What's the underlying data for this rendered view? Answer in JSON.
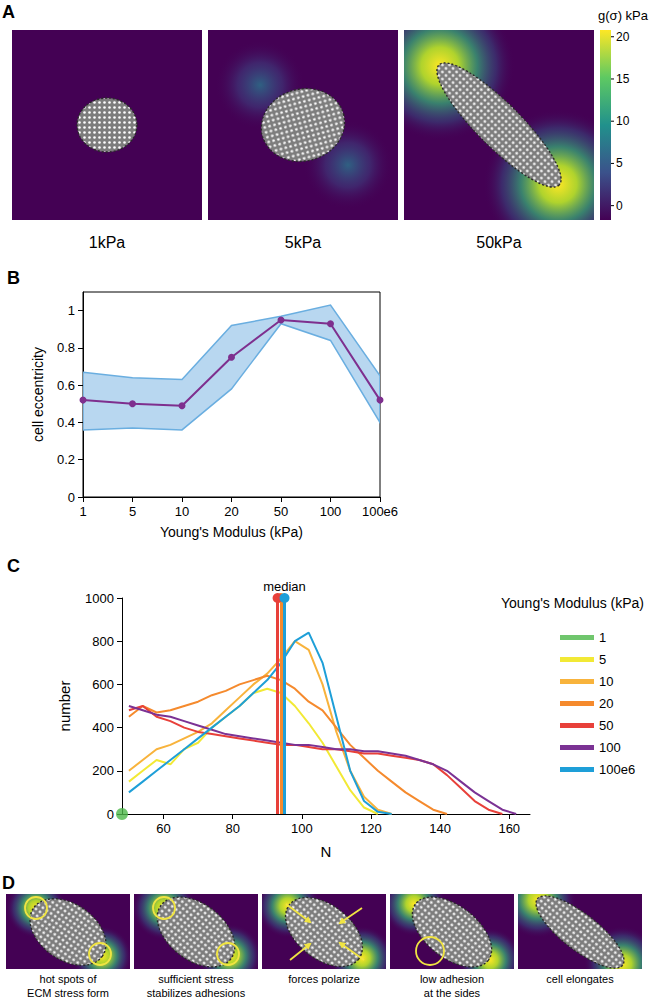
{
  "panel_A": {
    "panel": "A",
    "images": [
      {
        "caption": "1kPa"
      },
      {
        "caption": "5kPa"
      },
      {
        "caption": "50kPa"
      }
    ],
    "colorbar": {
      "title": "g(σ) kPa",
      "range": [
        -1.7,
        20.8
      ],
      "ticks": [
        0,
        5,
        10,
        15,
        20
      ]
    }
  },
  "chart_data": [
    {
      "panel": "B",
      "type": "line",
      "categories": [
        "1",
        "5",
        "10",
        "20",
        "50",
        "100",
        "100e6"
      ],
      "values": [
        0.52,
        0.5,
        0.49,
        0.75,
        0.95,
        0.93,
        0.52
      ],
      "lower": [
        0.36,
        0.37,
        0.36,
        0.58,
        0.93,
        0.84,
        0.4
      ],
      "upper": [
        0.67,
        0.64,
        0.63,
        0.92,
        0.97,
        1.03,
        0.65
      ],
      "color": "#7e2f8e",
      "marker": "circle",
      "x_label": "Young's Modulus (kPa)",
      "y_label": "cell eccentricity",
      "ylim": [
        0,
        1.1
      ],
      "yticks": [
        0,
        0.2,
        0.4,
        0.6,
        0.8,
        1
      ],
      "grid": false
    },
    {
      "panel": "C",
      "type": "line",
      "x_label": "N",
      "y_label": "number",
      "xlim": [
        48,
        166
      ],
      "xticks": [
        60,
        80,
        100,
        120,
        140,
        160
      ],
      "ylim": [
        0,
        1000
      ],
      "yticks": [
        0,
        200,
        400,
        600,
        800,
        1000
      ],
      "grid": false,
      "legend": "right",
      "legend_title": "Young's Modulus (kPa)",
      "annotation": "median",
      "x": [
        50,
        54,
        58,
        62,
        66,
        70,
        74,
        78,
        82,
        86,
        90,
        94,
        98,
        102,
        106,
        110,
        114,
        118,
        122,
        126,
        130,
        134,
        138,
        142,
        146,
        150,
        154,
        158,
        162
      ],
      "series": [
        {
          "name": "1",
          "color": "#4cb848",
          "type": "scatter",
          "marker": "circle",
          "x": [
            48
          ],
          "values": [
            0
          ]
        },
        {
          "name": "5",
          "color": "#f2e935",
          "values": [
            150,
            200,
            250,
            230,
            300,
            330,
            400,
            450,
            500,
            560,
            580,
            560,
            500,
            420,
            330,
            220,
            110,
            30,
            0,
            null,
            null,
            null,
            null,
            null,
            null,
            null,
            null,
            null,
            null
          ]
        },
        {
          "name": "10",
          "color": "#f8b33c",
          "values": [
            200,
            250,
            300,
            320,
            350,
            380,
            420,
            480,
            540,
            600,
            650,
            720,
            800,
            760,
            600,
            380,
            200,
            80,
            20,
            0,
            null,
            null,
            null,
            null,
            null,
            null,
            null,
            null,
            null
          ]
        },
        {
          "name": "20",
          "color": "#f58a2d",
          "median": 94,
          "values": [
            450,
            500,
            470,
            480,
            500,
            520,
            550,
            570,
            600,
            620,
            640,
            620,
            580,
            520,
            480,
            400,
            320,
            260,
            200,
            150,
            100,
            60,
            20,
            0,
            null,
            null,
            null,
            null,
            null
          ]
        },
        {
          "name": "50",
          "color": "#e8403a",
          "median": 93,
          "values": [
            480,
            500,
            450,
            430,
            400,
            380,
            370,
            360,
            350,
            340,
            330,
            320,
            320,
            310,
            300,
            300,
            290,
            280,
            280,
            270,
            260,
            250,
            230,
            180,
            120,
            60,
            20,
            0,
            null
          ]
        },
        {
          "name": "100",
          "color": "#7b3294",
          "values": [
            500,
            480,
            460,
            450,
            430,
            410,
            390,
            370,
            360,
            350,
            340,
            330,
            320,
            320,
            310,
            300,
            300,
            290,
            290,
            280,
            270,
            250,
            230,
            200,
            150,
            100,
            60,
            20,
            0
          ]
        },
        {
          "name": "100e6",
          "color": "#1e9fd8",
          "median": 95,
          "values": [
            100,
            150,
            200,
            250,
            300,
            350,
            400,
            450,
            500,
            560,
            620,
            700,
            800,
            840,
            700,
            450,
            200,
            60,
            10,
            0,
            null,
            null,
            null,
            null,
            null,
            null,
            null,
            null,
            null
          ]
        }
      ]
    }
  ],
  "panel_D": {
    "panel": "D",
    "steps": [
      {
        "caption": "hot spots of ECM stress form"
      },
      {
        "caption": "sufficient stress stabilizes adhesions"
      },
      {
        "caption": "forces polarize"
      },
      {
        "caption": "low adhesion at the sides"
      },
      {
        "caption": "cell elongates"
      }
    ]
  }
}
